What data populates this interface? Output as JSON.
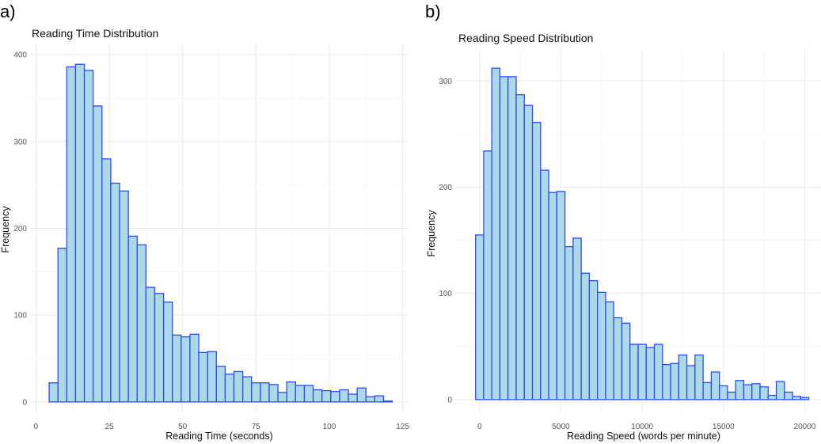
{
  "chart_data": [
    {
      "type": "bar",
      "panel_label": "a)",
      "title": "Reading Time Distribution",
      "xlabel": "Reading Time (seconds)",
      "ylabel": "Frequency",
      "xlim": [
        -2,
        127
      ],
      "ylim": [
        -12,
        412
      ],
      "xticks": [
        0,
        25,
        50,
        75,
        100,
        125
      ],
      "yticks": [
        0,
        100,
        200,
        300,
        400
      ],
      "grid": true,
      "bin_width": 3,
      "bin_centers": [
        6,
        9,
        12,
        15,
        18,
        21,
        24,
        27,
        30,
        33,
        36,
        39,
        42,
        45,
        48,
        51,
        54,
        57,
        60,
        63,
        66,
        69,
        72,
        75,
        78,
        81,
        84,
        87,
        90,
        93,
        96,
        99,
        102,
        105,
        108,
        111,
        114,
        117,
        120
      ],
      "values": [
        22,
        177,
        386,
        389,
        382,
        341,
        280,
        252,
        243,
        191,
        181,
        132,
        125,
        115,
        77,
        75,
        78,
        57,
        58,
        41,
        32,
        35,
        29,
        22,
        22,
        20,
        11,
        23,
        19,
        19,
        14,
        13,
        12,
        14,
        9,
        16,
        6,
        7,
        1
      ],
      "fill": "#add8e6",
      "edge": "#2a4bff"
    },
    {
      "type": "bar",
      "panel_label": "b)",
      "title": "Reading Speed Distribution",
      "xlabel": "Reading Speed (words per minute)",
      "ylabel": "Frequency",
      "xlim": [
        -1500,
        21000
      ],
      "ylim": [
        -12,
        330
      ],
      "xticks": [
        0,
        5000,
        10000,
        15000,
        20000
      ],
      "yticks": [
        0,
        100,
        200,
        300
      ],
      "grid": true,
      "bin_width": 500,
      "bin_centers": [
        0,
        500,
        1000,
        1500,
        2000,
        2500,
        3000,
        3500,
        4000,
        4500,
        5000,
        5500,
        6000,
        6500,
        7000,
        7500,
        8000,
        8500,
        9000,
        9500,
        10000,
        10500,
        11000,
        11500,
        12000,
        12500,
        13000,
        13500,
        14000,
        14500,
        15000,
        15500,
        16000,
        16500,
        17000,
        17500,
        18000,
        18500,
        19000,
        19500,
        20000
      ],
      "values": [
        155,
        234,
        312,
        304,
        304,
        287,
        277,
        261,
        216,
        195,
        196,
        144,
        152,
        119,
        112,
        101,
        92,
        77,
        72,
        52,
        52,
        49,
        52,
        33,
        34,
        42,
        32,
        42,
        16,
        26,
        13,
        7,
        18,
        14,
        15,
        12,
        4,
        17,
        7,
        3,
        2
      ],
      "fill": "#add8e6",
      "edge": "#2a4bff"
    }
  ]
}
